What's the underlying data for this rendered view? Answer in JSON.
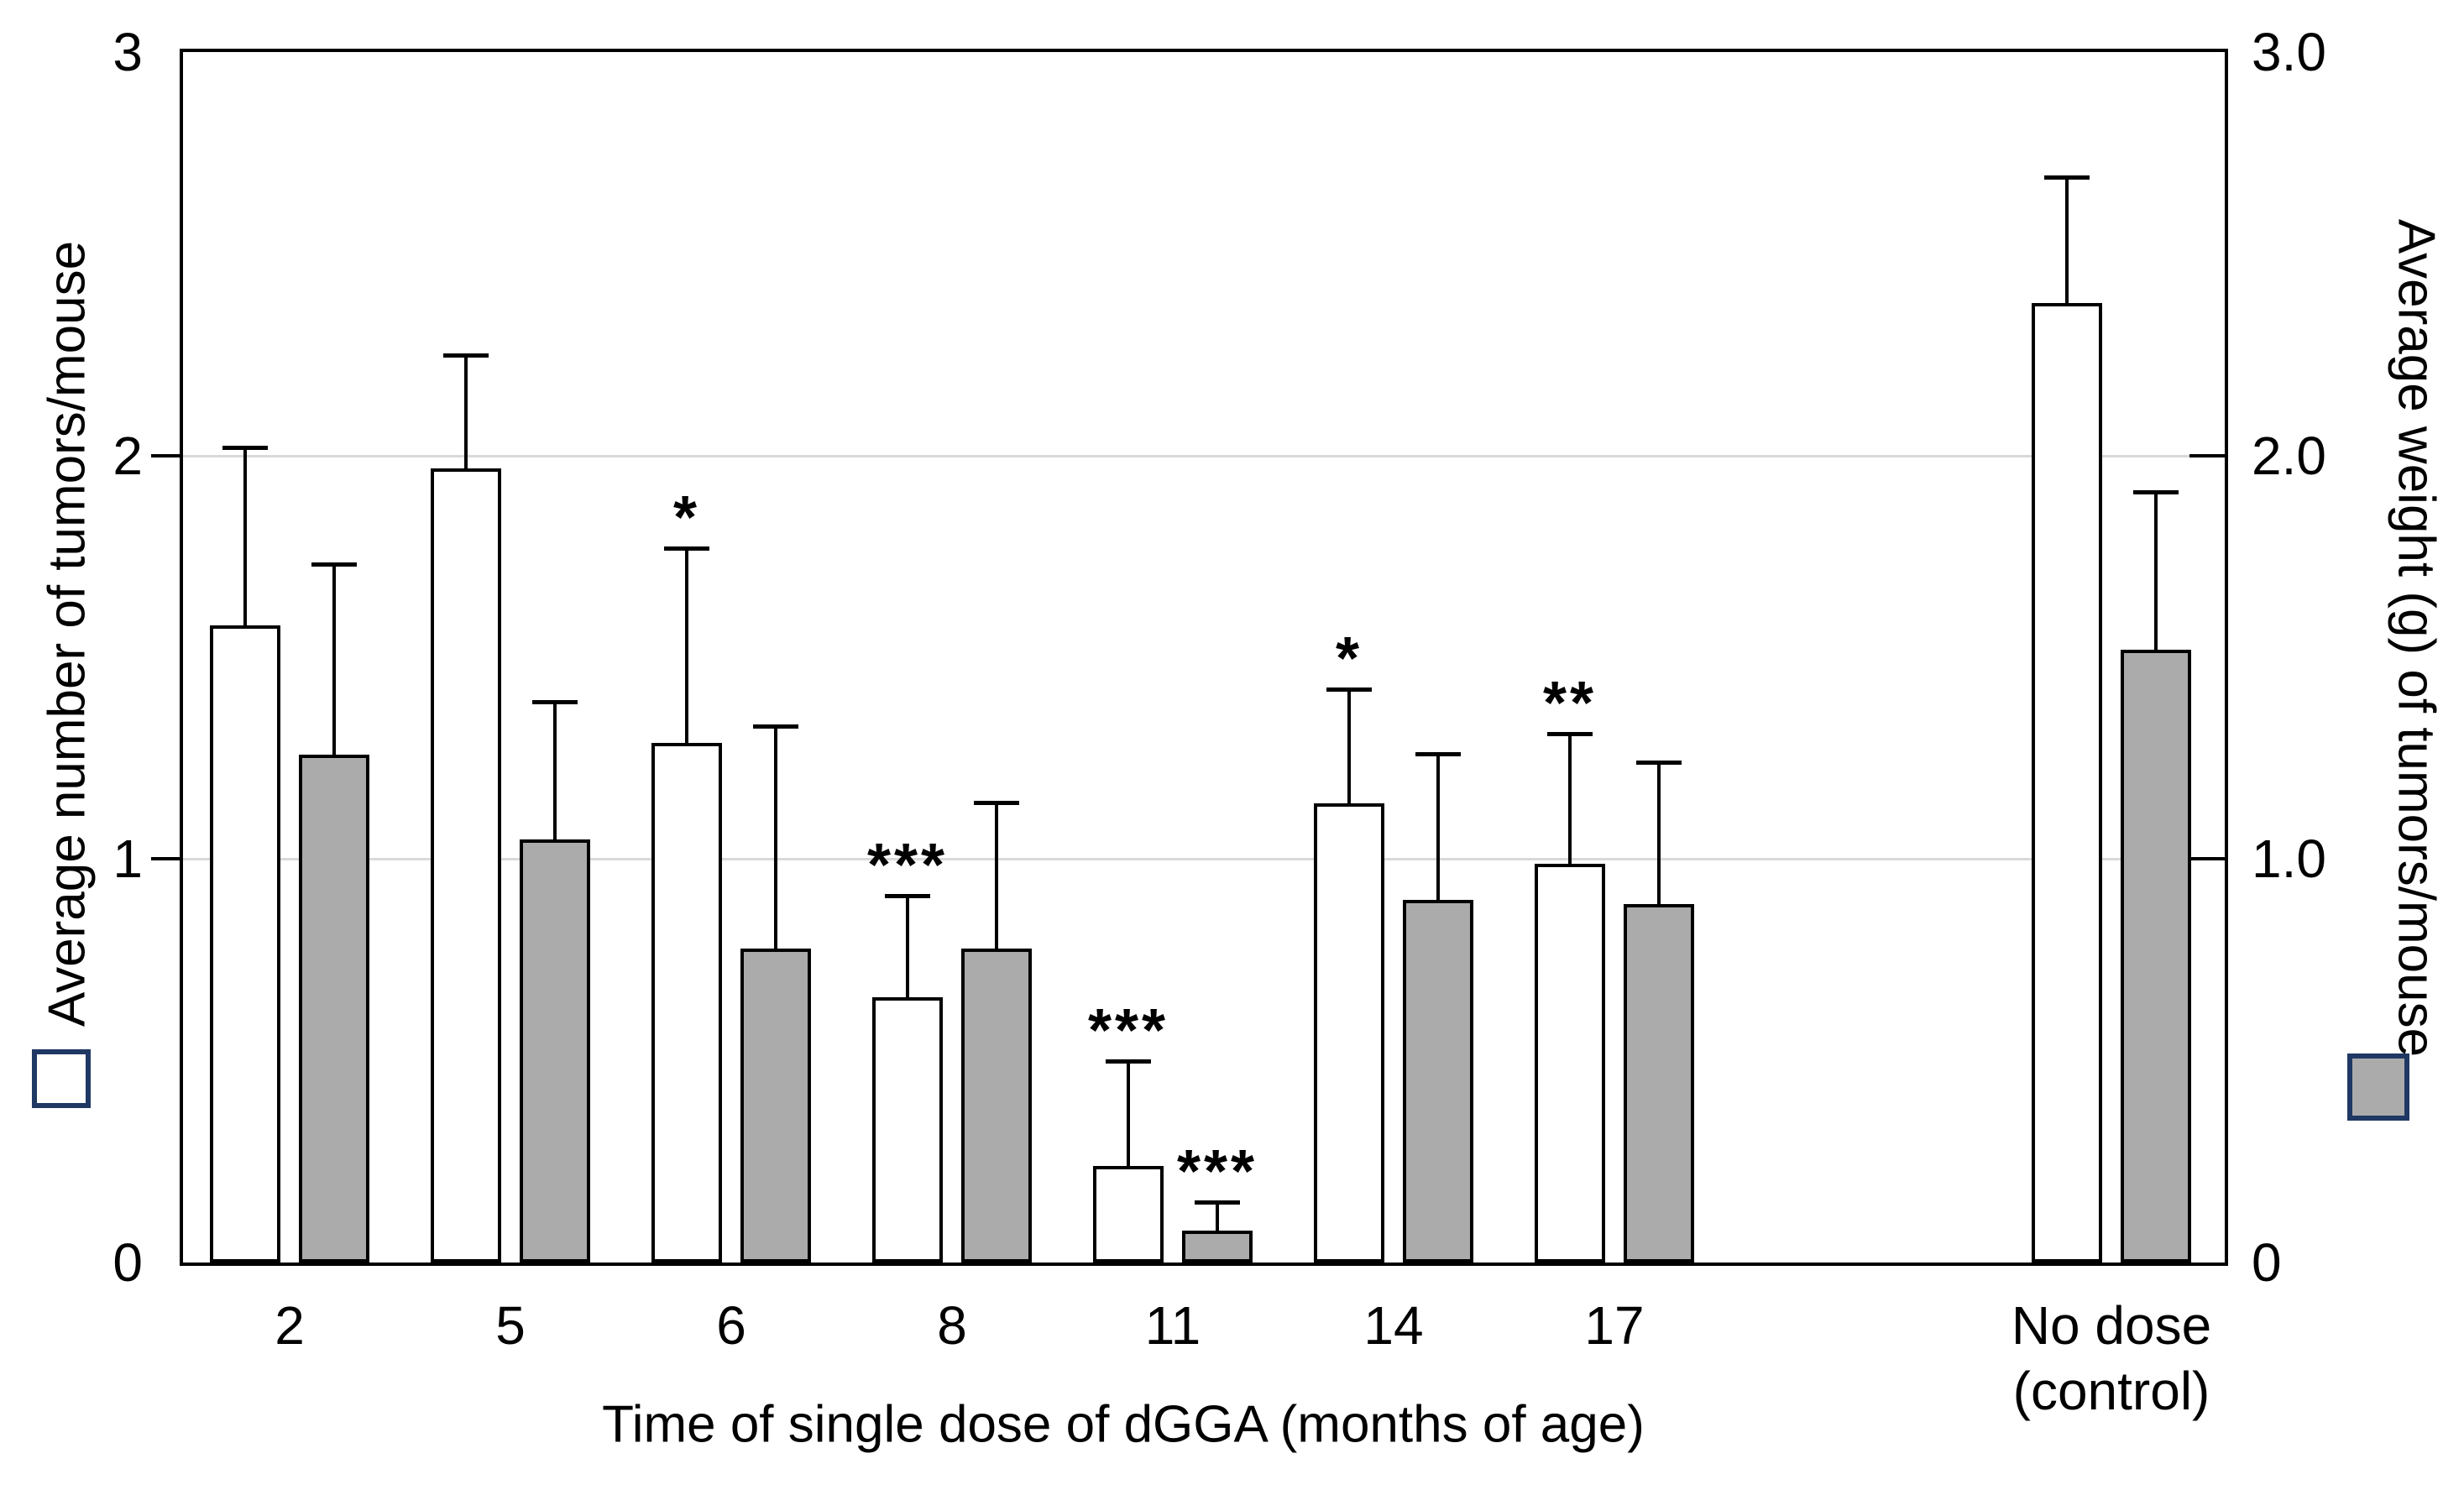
{
  "chart_data": {
    "type": "bar",
    "title": "",
    "xlabel": "Time of single dose of dGGA (months of age)",
    "ylabel_left": "Average number of tumors/mouse",
    "ylabel_right": "Average weight (g) of tumors/mouse",
    "ylim": [
      0,
      3
    ],
    "grid_values": [
      1,
      2
    ],
    "grid_on": true,
    "tick_values": [
      0,
      1,
      2,
      3
    ],
    "tick_labels_left": [
      "0",
      "1",
      "2",
      "3"
    ],
    "tick_labels_right": [
      "0",
      "1.0",
      "2.0",
      "3.0"
    ],
    "categories": [
      "2",
      "5",
      "6",
      "8",
      "11",
      "14",
      "17",
      "No dose\n(control)"
    ],
    "series": [
      {
        "name": "Average number of tumors/mouse",
        "swatch": "white",
        "fill": "#FFFFFF",
        "values": [
          1.57,
          1.96,
          1.28,
          0.65,
          0.23,
          1.13,
          0.98,
          2.37
        ],
        "error_tops": [
          2.02,
          2.25,
          1.77,
          0.91,
          0.5,
          1.42,
          1.31,
          2.69
        ],
        "sig": [
          "",
          "",
          "*",
          "***",
          "***",
          "*",
          "**",
          ""
        ]
      },
      {
        "name": "Average weight (g) of tumors/mouse",
        "swatch": "gray",
        "fill": "#ABABAB",
        "values": [
          1.25,
          1.04,
          0.77,
          0.77,
          0.07,
          0.89,
          0.88,
          1.51
        ],
        "error_tops": [
          1.73,
          1.39,
          1.33,
          1.14,
          0.15,
          1.26,
          1.24,
          1.91
        ],
        "sig": [
          "",
          "",
          "",
          "",
          "***",
          "",
          "",
          ""
        ]
      }
    ],
    "legend_position": "outside-left-and-right-middle",
    "colors": {
      "bar_white": "#FFFFFF",
      "bar_gray": "#ABABAB",
      "bar_border": "#000000",
      "legend_border": "#1F3864",
      "gridline": "#D9D9D9",
      "axis": "#000000"
    }
  }
}
